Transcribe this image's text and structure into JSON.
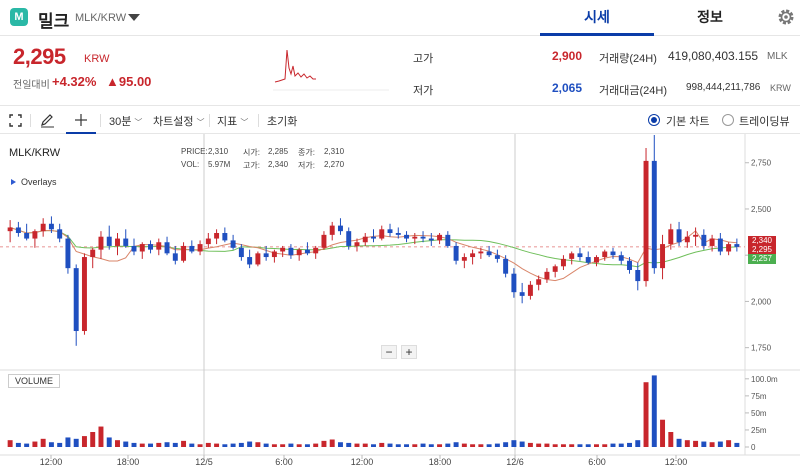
{
  "header": {
    "logo_letter": "M",
    "coin_name": "밀크",
    "pair": "MLK/KRW",
    "tabs": [
      {
        "label": "시세",
        "active": true
      },
      {
        "label": "정보",
        "active": false
      }
    ]
  },
  "price": {
    "current": "2,295",
    "unit": "KRW",
    "change_label": "전일대비",
    "change_rate": "+4.32%",
    "change_amount": "▲95.00"
  },
  "stats": {
    "high_label": "고가",
    "high": "2,900",
    "low_label": "저가",
    "low": "2,065",
    "volume_label": "거래량(24H)",
    "volume": "419,080,403.155",
    "volume_unit": "MLK",
    "value_label": "거래대금(24H)",
    "value": "998,444,211,786",
    "value_unit": "KRW"
  },
  "toolbar": {
    "interval": "30분",
    "chart_settings": "차트설정",
    "indicators": "지표",
    "reset": "초기화",
    "basic_chart": "기본 차트",
    "tradingview": "트레이딩뷰"
  },
  "chart_header": {
    "symbol": "MLK/KRW",
    "price_label": "PRICE:",
    "price_value": "2,310",
    "open_label": "시가:",
    "open_value": "2,285",
    "close_label": "종가:",
    "close_value": "2,310",
    "vol_label": "VOL:",
    "vol_value": "5.97M",
    "high_label": "고가:",
    "high_value": "2,340",
    "low_label": "저가:",
    "low_value": "2,270",
    "overlays": "Overlays",
    "volume_panel": "VOLUME",
    "last_tags": [
      "2,340",
      "2,295",
      "2,257"
    ]
  },
  "colors": {
    "up": "#c8262c",
    "down": "#1f4fc0",
    "ma_fast": "#d9866a",
    "ma_slow": "#6fbf5a",
    "accent": "#0a3ca8"
  },
  "icons": [
    "chevron-down-icon",
    "gear-icon",
    "fullscreen-icon",
    "pencil-icon",
    "crosshair-icon",
    "zoom-out-icon",
    "zoom-in-icon"
  ],
  "chart_data": {
    "type": "candlestick",
    "x_tick_labels": [
      "12:00",
      "18:00",
      "12/5",
      "6:00",
      "12:00",
      "18:00",
      "12/6",
      "6:00",
      "12:00"
    ],
    "y_ticks": [
      1750,
      2000,
      2250,
      2500,
      2750
    ],
    "y_tick_labels": [
      "1,750",
      "2,000",
      "2,250",
      "2,500",
      "2,750"
    ],
    "ylim": [
      1640,
      2900
    ],
    "volume_ticks": [
      0,
      25,
      50,
      75,
      100
    ],
    "volume_tick_labels": [
      "0",
      "25m",
      "50m",
      "75m",
      "100.0m"
    ],
    "volume_ylim": [
      0,
      110
    ],
    "current_price": 2295,
    "candles": [
      [
        2380,
        2440,
        2320,
        2400,
        10
      ],
      [
        2400,
        2430,
        2350,
        2370,
        6
      ],
      [
        2370,
        2420,
        2330,
        2340,
        5
      ],
      [
        2340,
        2390,
        2290,
        2380,
        8
      ],
      [
        2380,
        2450,
        2350,
        2420,
        12
      ],
      [
        2420,
        2460,
        2370,
        2390,
        7
      ],
      [
        2390,
        2420,
        2320,
        2340,
        6
      ],
      [
        2340,
        2360,
        2150,
        2180,
        14
      ],
      [
        2180,
        2200,
        1760,
        1840,
        12
      ],
      [
        1840,
        2260,
        1820,
        2240,
        16
      ],
      [
        2240,
        2290,
        2180,
        2280,
        22
      ],
      [
        2280,
        2380,
        2230,
        2350,
        30
      ],
      [
        2350,
        2410,
        2280,
        2300,
        14
      ],
      [
        2300,
        2370,
        2250,
        2340,
        10
      ],
      [
        2340,
        2390,
        2290,
        2300,
        8
      ],
      [
        2300,
        2340,
        2250,
        2270,
        6
      ],
      [
        2270,
        2320,
        2230,
        2310,
        5
      ],
      [
        2310,
        2330,
        2260,
        2280,
        5
      ],
      [
        2280,
        2340,
        2250,
        2320,
        6
      ],
      [
        2320,
        2350,
        2250,
        2260,
        7
      ],
      [
        2260,
        2300,
        2200,
        2220,
        6
      ],
      [
        2220,
        2320,
        2210,
        2300,
        9
      ],
      [
        2300,
        2330,
        2260,
        2270,
        5
      ],
      [
        2270,
        2330,
        2250,
        2310,
        4
      ],
      [
        2310,
        2370,
        2290,
        2340,
        6
      ],
      [
        2340,
        2390,
        2310,
        2370,
        5
      ],
      [
        2370,
        2400,
        2320,
        2330,
        4
      ],
      [
        2330,
        2360,
        2280,
        2290,
        5
      ],
      [
        2290,
        2310,
        2220,
        2240,
        6
      ],
      [
        2240,
        2280,
        2180,
        2200,
        8
      ],
      [
        2200,
        2270,
        2190,
        2260,
        7
      ],
      [
        2260,
        2300,
        2220,
        2240,
        5
      ],
      [
        2240,
        2280,
        2210,
        2270,
        4
      ],
      [
        2270,
        2300,
        2240,
        2290,
        4
      ],
      [
        2290,
        2310,
        2230,
        2250,
        5
      ],
      [
        2250,
        2290,
        2220,
        2280,
        4
      ],
      [
        2280,
        2320,
        2250,
        2260,
        4
      ],
      [
        2260,
        2300,
        2230,
        2290,
        5
      ],
      [
        2290,
        2380,
        2280,
        2360,
        9
      ],
      [
        2360,
        2430,
        2330,
        2410,
        11
      ],
      [
        2410,
        2450,
        2360,
        2380,
        7
      ],
      [
        2380,
        2400,
        2280,
        2300,
        6
      ],
      [
        2300,
        2340,
        2270,
        2320,
        5
      ],
      [
        2320,
        2370,
        2300,
        2350,
        5
      ],
      [
        2350,
        2390,
        2320,
        2340,
        4
      ],
      [
        2340,
        2410,
        2330,
        2390,
        6
      ],
      [
        2390,
        2420,
        2350,
        2370,
        5
      ],
      [
        2370,
        2400,
        2340,
        2360,
        4
      ],
      [
        2360,
        2380,
        2320,
        2340,
        4
      ],
      [
        2340,
        2370,
        2310,
        2350,
        4
      ],
      [
        2350,
        2380,
        2320,
        2340,
        5
      ],
      [
        2340,
        2370,
        2300,
        2330,
        4
      ],
      [
        2330,
        2370,
        2310,
        2360,
        4
      ],
      [
        2360,
        2380,
        2290,
        2300,
        5
      ],
      [
        2300,
        2320,
        2200,
        2220,
        7
      ],
      [
        2220,
        2260,
        2180,
        2240,
        5
      ],
      [
        2240,
        2280,
        2200,
        2260,
        4
      ],
      [
        2260,
        2290,
        2230,
        2270,
        4
      ],
      [
        2270,
        2300,
        2240,
        2250,
        4
      ],
      [
        2250,
        2280,
        2210,
        2230,
        5
      ],
      [
        2230,
        2250,
        2130,
        2150,
        7
      ],
      [
        2150,
        2180,
        2020,
        2050,
        10
      ],
      [
        2050,
        2100,
        1990,
        2030,
        8
      ],
      [
        2030,
        2110,
        2010,
        2090,
        6
      ],
      [
        2090,
        2140,
        2060,
        2120,
        5
      ],
      [
        2120,
        2180,
        2100,
        2160,
        5
      ],
      [
        2160,
        2200,
        2130,
        2190,
        4
      ],
      [
        2190,
        2250,
        2170,
        2230,
        4
      ],
      [
        2230,
        2270,
        2200,
        2260,
        4
      ],
      [
        2260,
        2290,
        2220,
        2240,
        4
      ],
      [
        2240,
        2270,
        2200,
        2210,
        4
      ],
      [
        2210,
        2250,
        2190,
        2240,
        4
      ],
      [
        2240,
        2280,
        2220,
        2270,
        4
      ],
      [
        2270,
        2290,
        2230,
        2250,
        5
      ],
      [
        2250,
        2270,
        2200,
        2220,
        5
      ],
      [
        2220,
        2240,
        2150,
        2170,
        6
      ],
      [
        2170,
        2210,
        2060,
        2110,
        10
      ],
      [
        2110,
        2830,
        2080,
        2760,
        95
      ],
      [
        2760,
        2900,
        2150,
        2180,
        105
      ],
      [
        2180,
        2360,
        2120,
        2310,
        40
      ],
      [
        2310,
        2420,
        2280,
        2390,
        22
      ],
      [
        2390,
        2430,
        2300,
        2320,
        12
      ],
      [
        2320,
        2380,
        2290,
        2350,
        10
      ],
      [
        2350,
        2400,
        2300,
        2360,
        9
      ],
      [
        2360,
        2390,
        2280,
        2300,
        8
      ],
      [
        2300,
        2360,
        2270,
        2340,
        7
      ],
      [
        2340,
        2370,
        2250,
        2270,
        8
      ],
      [
        2270,
        2320,
        2250,
        2310,
        10
      ],
      [
        2310,
        2340,
        2270,
        2295,
        6
      ]
    ]
  }
}
